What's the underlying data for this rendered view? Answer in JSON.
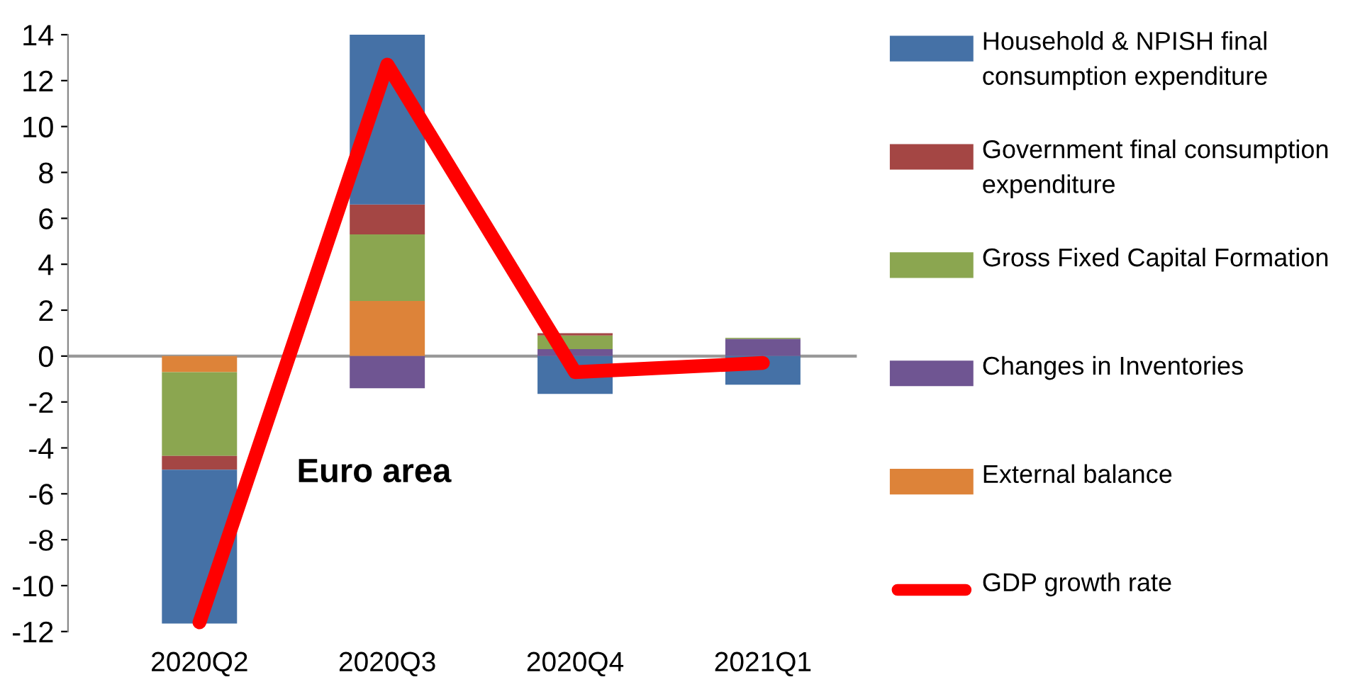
{
  "chart_data": {
    "type": "bar",
    "stacked": true,
    "categories": [
      "2020Q2",
      "2020Q3",
      "2020Q4",
      "2021Q1"
    ],
    "series": [
      {
        "name": "External balance",
        "color": "#dd8339",
        "values": [
          -0.7,
          2.4,
          0,
          0
        ]
      },
      {
        "name": "Changes in Inventories",
        "color": "#6f5592",
        "values": [
          0,
          -1.4,
          0.3,
          0.75
        ]
      },
      {
        "name": "Gross Fixed Capital Formation",
        "color": "#8ba650",
        "values": [
          -3.65,
          2.9,
          0.6,
          0.05
        ]
      },
      {
        "name": "Government final consumption expenditure",
        "color": "#a44644",
        "values": [
          -0.6,
          1.3,
          0.1,
          0
        ]
      },
      {
        "name": "Household & NPISH final consumption expenditure",
        "color": "#4571a6",
        "values": [
          -6.7,
          7.4,
          -1.65,
          -1.25
        ]
      },
      {
        "name": "GDP growth rate",
        "type": "line",
        "color": "#ff0000",
        "values": [
          -11.6,
          12.7,
          -0.7,
          -0.3
        ]
      }
    ],
    "ylim": [
      -12,
      14
    ],
    "yticks": [
      -12,
      -10,
      -8,
      -6,
      -4,
      -2,
      0,
      2,
      4,
      6,
      8,
      10,
      12,
      14
    ],
    "annotations": [
      "Euro area"
    ],
    "ref_lines": [
      {
        "axis": "y",
        "value": 0,
        "color": "#999999"
      }
    ],
    "legend": "right",
    "grid": false
  }
}
